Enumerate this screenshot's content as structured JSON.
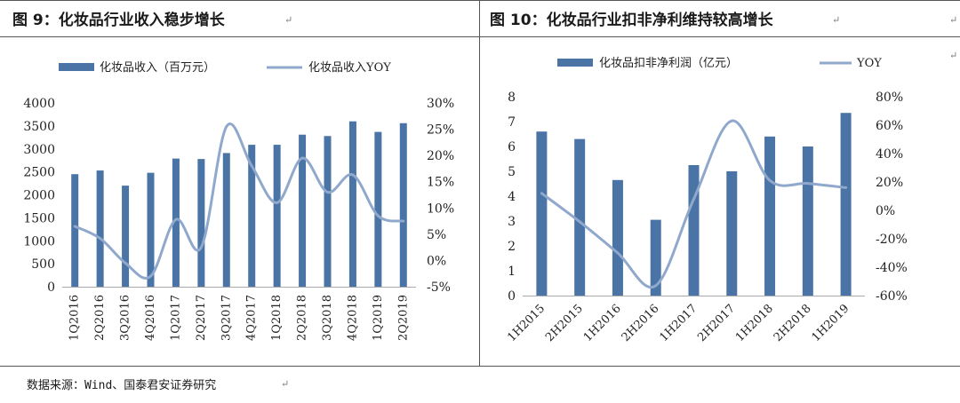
{
  "figures": [
    {
      "title": "图 9：化妆品行业收入稳步增长",
      "chart_data": {
        "type": "bar",
        "categories": [
          "1Q2016",
          "2Q2016",
          "3Q2016",
          "4Q2016",
          "1Q2017",
          "2Q2017",
          "3Q2017",
          "4Q2017",
          "1Q2018",
          "2Q2018",
          "3Q2018",
          "4Q2018",
          "1Q2019",
          "2Q2019"
        ],
        "series": [
          {
            "name": "化妆品收入（百万元）",
            "type": "bar",
            "axis": "left",
            "values": [
              2450,
              2530,
              2200,
              2480,
              2790,
              2780,
              2910,
              3090,
              3090,
              3310,
              3280,
              3600,
              3370,
              3560
            ]
          },
          {
            "name": "化妆品收入YOY",
            "type": "line",
            "axis": "right",
            "values": [
              6.5,
              4.2,
              -0.5,
              -3.0,
              7.8,
              2.5,
              25.5,
              18.0,
              11.0,
              19.5,
              13.0,
              16.3,
              8.5,
              7.5
            ]
          }
        ],
        "ylim": [
          0,
          4000
        ],
        "yticks": [
          "0",
          "500",
          "1000",
          "1500",
          "2000",
          "2500",
          "3000",
          "3500",
          "4000"
        ],
        "y2lim": [
          -5,
          30
        ],
        "y2ticks": [
          "-5%",
          "0%",
          "5%",
          "10%",
          "15%",
          "20%",
          "25%",
          "30%"
        ],
        "legend": "top",
        "grid": false
      }
    },
    {
      "title": "图 10：化妆品行业扣非净利维持较高增长",
      "chart_data": {
        "type": "bar",
        "categories": [
          "1H2015",
          "2H2015",
          "1H2016",
          "2H2016",
          "1H2017",
          "2H2017",
          "1H2018",
          "2H2018",
          "1H2019"
        ],
        "series": [
          {
            "name": "化妆品扣非净利润（亿元）",
            "type": "bar",
            "axis": "left",
            "values": [
              6.6,
              6.3,
              4.65,
              3.05,
              5.25,
              5.0,
              6.4,
              6.0,
              7.35
            ]
          },
          {
            "name": "YOY",
            "type": "line",
            "axis": "right",
            "values": [
              12,
              -8,
              -30,
              -53,
              8,
              63,
              21,
              19,
              16
            ]
          }
        ],
        "ylim": [
          0,
          8
        ],
        "yticks": [
          "0",
          "1",
          "2",
          "3",
          "4",
          "5",
          "6",
          "7",
          "8"
        ],
        "y2lim": [
          -60,
          80
        ],
        "y2ticks": [
          "-60%",
          "-40%",
          "-20%",
          "0%",
          "20%",
          "40%",
          "60%",
          "80%"
        ],
        "legend": "top",
        "grid": false
      }
    }
  ],
  "source": "数据来源：Wind、国泰君安证券研究",
  "colors": {
    "bar": "#4a74a5",
    "line": "#8fa8cc",
    "text": "#1a1a1a"
  }
}
